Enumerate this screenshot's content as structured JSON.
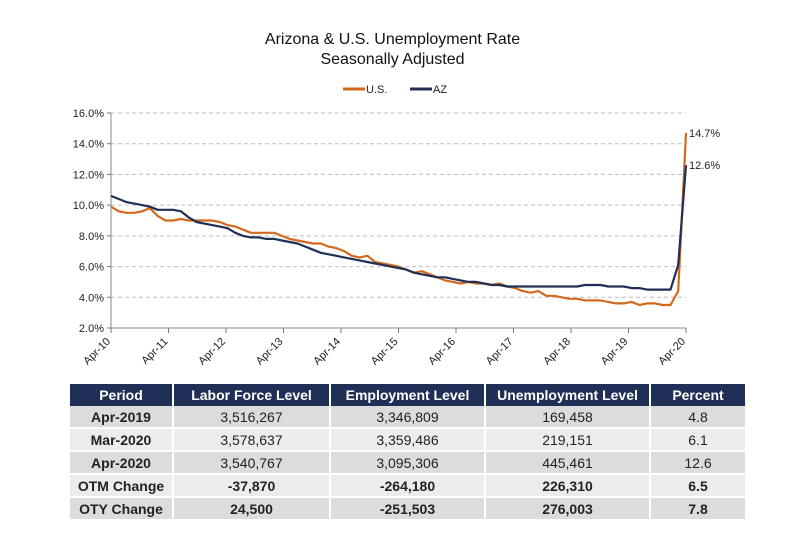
{
  "chart_data": {
    "type": "line",
    "title": "Arizona & U.S. Unemployment Rate",
    "subtitle": "Seasonally Adjusted",
    "xlabel": "",
    "ylabel": "",
    "ylim": [
      2.0,
      16.0
    ],
    "yticks": [
      "2.0%",
      "4.0%",
      "6.0%",
      "8.0%",
      "10.0%",
      "12.0%",
      "14.0%",
      "16.0%"
    ],
    "xticks": [
      "Apr-10",
      "Apr-11",
      "Apr-12",
      "Apr-13",
      "Apr-14",
      "Apr-15",
      "Apr-16",
      "Apr-17",
      "Apr-18",
      "Apr-19",
      "Apr-20"
    ],
    "grid": true,
    "legend_position": "top-center",
    "series": [
      {
        "name": "U.S.",
        "color": "#d2691e",
        "values": [
          9.9,
          9.6,
          9.5,
          9.5,
          9.6,
          9.8,
          9.3,
          9.0,
          9.0,
          9.1,
          9.0,
          9.0,
          9.0,
          9.0,
          8.9,
          8.7,
          8.6,
          8.4,
          8.2,
          8.2,
          8.2,
          8.2,
          8.0,
          7.8,
          7.7,
          7.6,
          7.5,
          7.5,
          7.3,
          7.2,
          7.0,
          6.7,
          6.6,
          6.7,
          6.3,
          6.2,
          6.1,
          6.0,
          5.8,
          5.6,
          5.7,
          5.5,
          5.3,
          5.1,
          5.0,
          4.9,
          5.0,
          4.9,
          4.9,
          4.8,
          4.9,
          4.7,
          4.6,
          4.4,
          4.3,
          4.4,
          4.1,
          4.1,
          4.0,
          3.9,
          3.9,
          3.8,
          3.8,
          3.8,
          3.7,
          3.6,
          3.6,
          3.7,
          3.5,
          3.6,
          3.6,
          3.5,
          3.5,
          4.4,
          14.7
        ]
      },
      {
        "name": "AZ",
        "color": "#1f2f55",
        "values": [
          10.6,
          10.4,
          10.2,
          10.1,
          10.0,
          9.9,
          9.7,
          9.7,
          9.7,
          9.6,
          9.2,
          8.9,
          8.8,
          8.7,
          8.6,
          8.5,
          8.2,
          8.0,
          7.9,
          7.9,
          7.8,
          7.8,
          7.7,
          7.6,
          7.5,
          7.3,
          7.1,
          6.9,
          6.8,
          6.7,
          6.6,
          6.5,
          6.4,
          6.3,
          6.2,
          6.1,
          6.0,
          5.9,
          5.8,
          5.6,
          5.5,
          5.4,
          5.3,
          5.3,
          5.2,
          5.1,
          5.0,
          5.0,
          4.9,
          4.8,
          4.8,
          4.7,
          4.7,
          4.7,
          4.7,
          4.7,
          4.7,
          4.7,
          4.7,
          4.7,
          4.7,
          4.8,
          4.8,
          4.8,
          4.7,
          4.7,
          4.7,
          4.6,
          4.6,
          4.5,
          4.5,
          4.5,
          4.5,
          6.1,
          12.6
        ]
      }
    ],
    "annotations": [
      "14.7%",
      "12.6%"
    ]
  },
  "table": {
    "headers": [
      "Period",
      "Labor Force Level",
      "Employment Level",
      "Unemployment Level",
      "Percent"
    ],
    "rows": [
      [
        "Apr-2019",
        "3,516,267",
        "3,346,809",
        "169,458",
        "4.8"
      ],
      [
        "Mar-2020",
        "3,578,637",
        "3,359,486",
        "219,151",
        "6.1"
      ],
      [
        "Apr-2020",
        "3,540,767",
        "3,095,306",
        "445,461",
        "12.6"
      ],
      [
        "OTM Change",
        "-37,870",
        "-264,180",
        "226,310",
        "6.5"
      ],
      [
        "OTY Change",
        "24,500",
        "-251,503",
        "276,003",
        "7.8"
      ]
    ]
  }
}
